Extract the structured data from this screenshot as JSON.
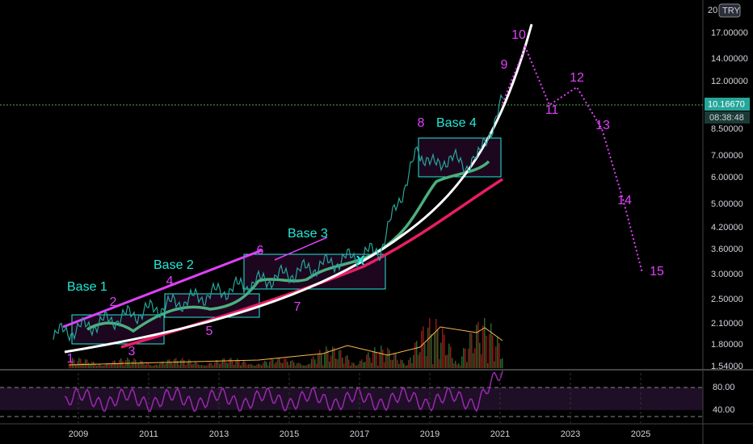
{
  "price_axis": {
    "top": "20",
    "currency": "TRY",
    "labels": [
      "17.00000",
      "14.00000",
      "12.00000",
      "8.50000",
      "7.00000",
      "6.00000",
      "5.00000",
      "4.20000",
      "3.60000",
      "3.00000",
      "2.50000",
      "2.10000",
      "1.80000",
      "1.54000"
    ],
    "last_price": "10.16670",
    "countdown": "08:38:48"
  },
  "rsi_axis": [
    "80.00",
    "40.00"
  ],
  "time_axis": [
    "2009",
    "2011",
    "2013",
    "2015",
    "2017",
    "2019",
    "2021",
    "2023",
    "2025"
  ],
  "annotations": {
    "waves": [
      "1",
      "2",
      "3",
      "4",
      "5",
      "6",
      "7",
      "8",
      "9",
      "10",
      "11",
      "12",
      "13",
      "14",
      "15"
    ],
    "bases": [
      "Base 1",
      "Base 2",
      "Base 3",
      "Base 4"
    ],
    "cross": "X"
  }
}
